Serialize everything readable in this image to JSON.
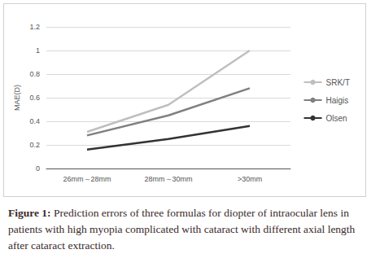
{
  "chart_data": {
    "type": "line",
    "caption": "Figure 1: Prediction errors of three formulas for diopter of intraocular lens in patients with high myopia complicated with cataract with different axial length after cataract extraction.",
    "y_label": "MAE(D)",
    "categories": [
      "26mm～28mm",
      "28mm～30mm",
      ">30mm"
    ],
    "series": [
      {
        "name": "SRK/T",
        "color": "#bfbfbf",
        "values": [
          0.31,
          0.54,
          1.0
        ]
      },
      {
        "name": "Haigis",
        "color": "#808080",
        "values": [
          0.28,
          0.45,
          0.68
        ]
      },
      {
        "name": "Olsen",
        "color": "#333333",
        "values": [
          0.16,
          0.25,
          0.36
        ]
      }
    ],
    "ylim": [
      0,
      1.2
    ],
    "yticks": [
      0,
      0.2,
      0.4,
      0.6,
      0.8,
      1,
      1.2
    ],
    "grid": true,
    "legend": "right"
  }
}
